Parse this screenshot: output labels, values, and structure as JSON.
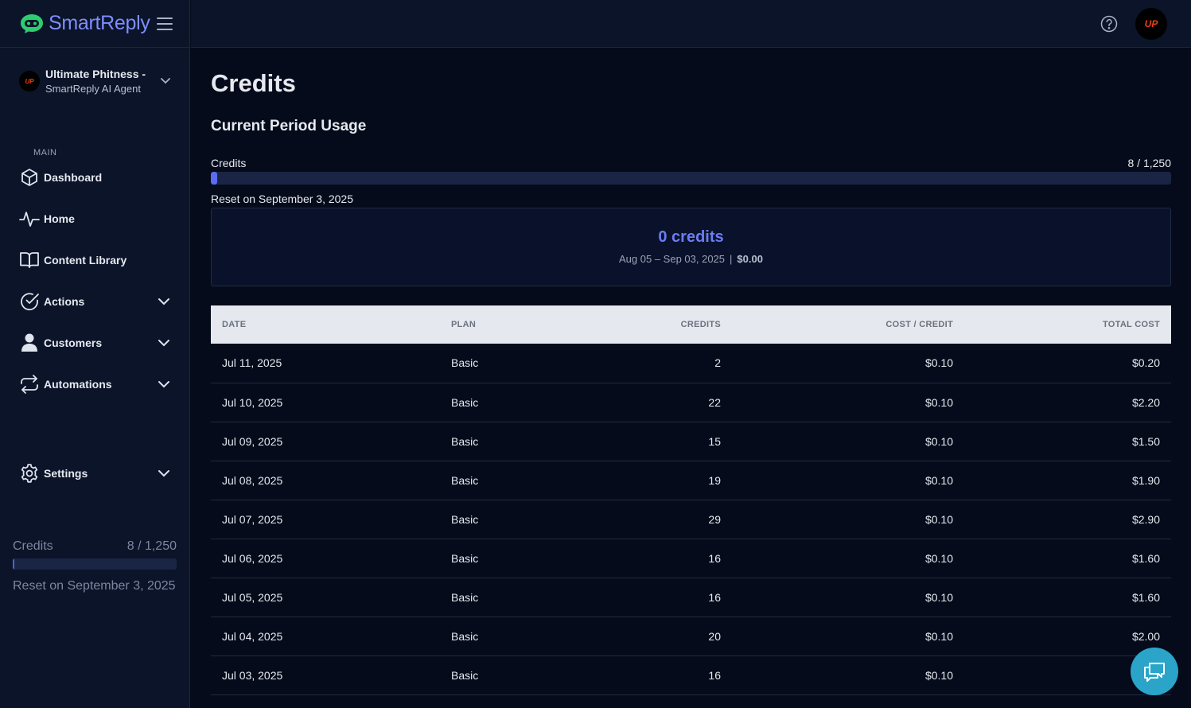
{
  "brand": {
    "name": "SmartReply"
  },
  "account": {
    "name": "Ultimate Phitness -",
    "subtitle": "SmartReply AI Agent",
    "avatar_text": "UP"
  },
  "sidebar": {
    "section_label": "MAIN",
    "items": [
      {
        "label": "Dashboard",
        "icon": "cube-icon"
      },
      {
        "label": "Home",
        "icon": "activity-icon"
      },
      {
        "label": "Content Library",
        "icon": "book-icon"
      },
      {
        "label": "Actions",
        "icon": "check-circle-icon",
        "expandable": true
      },
      {
        "label": "Customers",
        "icon": "user-icon",
        "expandable": true
      },
      {
        "label": "Automations",
        "icon": "repeat-icon",
        "expandable": true
      },
      {
        "label": "Settings",
        "icon": "gear-icon",
        "expandable": true
      }
    ],
    "credits": {
      "label": "Credits",
      "value": "8 / 1,250",
      "fraction": 0.0064,
      "reset": "Reset on September 3, 2025"
    }
  },
  "header": {
    "avatar_text": "UP"
  },
  "main": {
    "title": "Credits",
    "section_title": "Current Period Usage",
    "usage": {
      "label": "Credits",
      "value": "8 / 1,250",
      "fraction": 0.0064,
      "reset": "Reset on September 3, 2025"
    },
    "summary": {
      "credits": "0 credits",
      "period": "Aug 05 – Sep 03, 2025",
      "cost": "$0.00"
    },
    "table": {
      "headers": [
        "DATE",
        "PLAN",
        "CREDITS",
        "COST / CREDIT",
        "TOTAL COST"
      ],
      "rows": [
        [
          "Jul 11, 2025",
          "Basic",
          "2",
          "$0.10",
          "$0.20"
        ],
        [
          "Jul 10, 2025",
          "Basic",
          "22",
          "$0.10",
          "$2.20"
        ],
        [
          "Jul 09, 2025",
          "Basic",
          "15",
          "$0.10",
          "$1.50"
        ],
        [
          "Jul 08, 2025",
          "Basic",
          "19",
          "$0.10",
          "$1.90"
        ],
        [
          "Jul 07, 2025",
          "Basic",
          "29",
          "$0.10",
          "$2.90"
        ],
        [
          "Jul 06, 2025",
          "Basic",
          "16",
          "$0.10",
          "$1.60"
        ],
        [
          "Jul 05, 2025",
          "Basic",
          "16",
          "$0.10",
          "$1.60"
        ],
        [
          "Jul 04, 2025",
          "Basic",
          "20",
          "$0.10",
          "$2.00"
        ],
        [
          "Jul 03, 2025",
          "Basic",
          "16",
          "$0.10",
          ""
        ]
      ]
    }
  },
  "colors": {
    "accent": "#6c7cf5",
    "sidebar_bg": "#0b1428",
    "page_bg": "#050b1a",
    "chat_button": "#2aa5c9",
    "avatar_text": "#e8401c"
  }
}
